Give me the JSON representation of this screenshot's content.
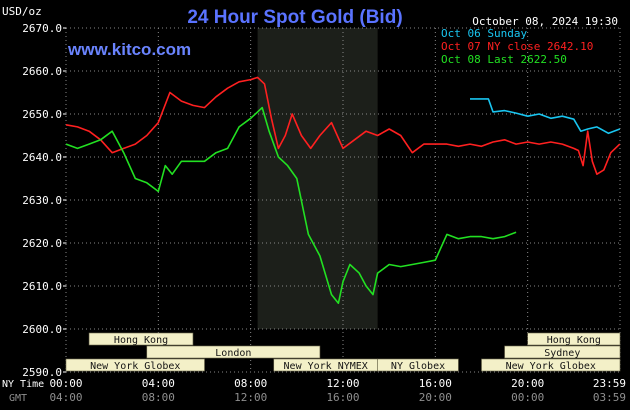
{
  "header": {
    "units": "USD/oz",
    "title": "24 Hour Spot Gold (Bid)",
    "timestamp": "October 08, 2024 19:30",
    "brand": "www.kitco.com"
  },
  "legend": [
    {
      "label": "Oct 06 Sunday",
      "color": "#19c5f0"
    },
    {
      "label": "Oct 07 NY close 2642.10",
      "color": "#ff2020"
    },
    {
      "label": "Oct 08 Last 2622.50",
      "color": "#22e022"
    }
  ],
  "colors": {
    "background": "#000000",
    "grid": "#888888",
    "title": "#5a73ff",
    "brand": "#6a84ff",
    "shade": "#1c1f1a",
    "bar_fill": "#f3f0c8",
    "bar_text": "#141414",
    "axis_text": "#ffffff",
    "gmt_text": "#8f8f8f"
  },
  "x_axis": {
    "row1_label": "NY Time",
    "row2_label": "GMT",
    "ny_ticks": [
      "00:00",
      "04:00",
      "08:00",
      "12:00",
      "16:00",
      "20:00",
      "23:59"
    ],
    "gmt_ticks": [
      "04:00",
      "08:00",
      "12:00",
      "16:00",
      "20:00",
      "00:00",
      "03:59"
    ]
  },
  "sessions": [
    {
      "label": "Hong Kong",
      "row": 0,
      "start": 1.0,
      "end": 5.5
    },
    {
      "label": "London",
      "row": 1,
      "start": 3.5,
      "end": 11.0
    },
    {
      "label": "New York Globex",
      "row": 2,
      "start": 0.0,
      "end": 6.0
    },
    {
      "label": "New York NYMEX",
      "row": 2,
      "start": 9.0,
      "end": 13.5
    },
    {
      "label": "NY Globex",
      "row": 2,
      "start": 13.5,
      "end": 17.0
    },
    {
      "label": "Hong Kong",
      "row": 0,
      "start": 20.0,
      "end": 24.0
    },
    {
      "label": "Sydney",
      "row": 1,
      "start": 19.0,
      "end": 24.0
    },
    {
      "label": "New York Globex",
      "row": 2,
      "start": 18.0,
      "end": 24.0
    }
  ],
  "chart_data": {
    "type": "line",
    "xlabel": "NY Time",
    "ylabel": "USD/oz",
    "xlim": [
      0,
      24
    ],
    "ylim": [
      2590,
      2670
    ],
    "y_ticks": [
      "2670.0",
      "2660.0",
      "2650.0",
      "2640.0",
      "2630.0",
      "2620.0",
      "2610.0",
      "2600.0",
      "2590.0"
    ],
    "grid": true,
    "legend_position": "top-right",
    "shaded_hours": [
      8.3,
      13.5
    ],
    "series": [
      {
        "name": "Oct 06 Sunday",
        "color": "#19c5f0",
        "x": [
          17.5,
          18.3,
          18.5,
          19.0,
          19.5,
          20.0,
          20.5,
          21.0,
          21.5,
          22.0,
          22.3,
          22.6,
          23.0,
          23.5,
          23.99
        ],
        "y": [
          2653.5,
          2653.5,
          2650.5,
          2650.8,
          2650.2,
          2649.5,
          2650.0,
          2649.0,
          2649.5,
          2648.8,
          2646.0,
          2646.5,
          2647.0,
          2645.5,
          2646.5
        ]
      },
      {
        "name": "Oct 07 NY close 2642.10",
        "color": "#ff2020",
        "x": [
          0.0,
          0.5,
          1.0,
          1.5,
          2.0,
          2.5,
          3.0,
          3.5,
          4.0,
          4.5,
          5.0,
          5.5,
          6.0,
          6.5,
          7.0,
          7.5,
          8.0,
          8.3,
          8.6,
          8.9,
          9.2,
          9.5,
          9.8,
          10.2,
          10.6,
          11.0,
          11.5,
          12.0,
          12.5,
          13.0,
          13.5,
          14.0,
          14.5,
          15.0,
          15.5,
          16.0,
          16.5,
          17.0,
          17.5,
          18.0,
          18.5,
          19.0,
          19.5,
          20.0,
          20.5,
          21.0,
          21.5,
          22.0,
          22.2,
          22.4,
          22.6,
          22.8,
          23.0,
          23.3,
          23.6,
          23.99
        ],
        "y": [
          2647.5,
          2647.0,
          2646.0,
          2644.0,
          2641.0,
          2642.0,
          2643.0,
          2645.0,
          2648.0,
          2655.0,
          2653.0,
          2652.0,
          2651.5,
          2654.0,
          2656.0,
          2657.5,
          2658.0,
          2658.5,
          2657.0,
          2649.0,
          2642.0,
          2645.0,
          2650.0,
          2645.0,
          2642.0,
          2645.0,
          2648.0,
          2642.0,
          2644.0,
          2646.0,
          2645.0,
          2646.5,
          2645.0,
          2641.0,
          2643.0,
          2643.0,
          2643.0,
          2642.5,
          2643.0,
          2642.5,
          2643.5,
          2644.0,
          2643.0,
          2643.5,
          2643.0,
          2643.5,
          2643.0,
          2642.0,
          2641.5,
          2638.0,
          2646.0,
          2639.0,
          2636.0,
          2637.0,
          2641.0,
          2643.0
        ]
      },
      {
        "name": "Oct 08 Last 2622.50",
        "color": "#22e022",
        "x": [
          0.0,
          0.5,
          1.0,
          1.5,
          2.0,
          2.5,
          3.0,
          3.5,
          4.0,
          4.3,
          4.6,
          5.0,
          5.5,
          6.0,
          6.5,
          7.0,
          7.5,
          8.0,
          8.3,
          8.5,
          8.8,
          9.2,
          9.6,
          10.0,
          10.5,
          11.0,
          11.5,
          11.8,
          12.0,
          12.3,
          12.7,
          13.0,
          13.3,
          13.5,
          14.0,
          14.5,
          15.0,
          15.5,
          16.0,
          16.5,
          17.0,
          17.5,
          18.0,
          18.5,
          19.0,
          19.5
        ],
        "y": [
          2643.0,
          2642.0,
          2643.0,
          2644.0,
          2646.0,
          2641.0,
          2635.0,
          2634.0,
          2632.0,
          2638.0,
          2636.0,
          2639.0,
          2639.0,
          2639.0,
          2641.0,
          2642.0,
          2647.0,
          2649.0,
          2650.5,
          2651.5,
          2646.0,
          2640.0,
          2638.0,
          2635.0,
          2622.0,
          2617.0,
          2608.0,
          2606.0,
          2611.0,
          2615.0,
          2613.0,
          2610.0,
          2608.0,
          2613.0,
          2615.0,
          2614.5,
          2615.0,
          2615.5,
          2616.0,
          2622.0,
          2621.0,
          2621.5,
          2621.5,
          2621.0,
          2621.5,
          2622.5
        ]
      }
    ]
  }
}
